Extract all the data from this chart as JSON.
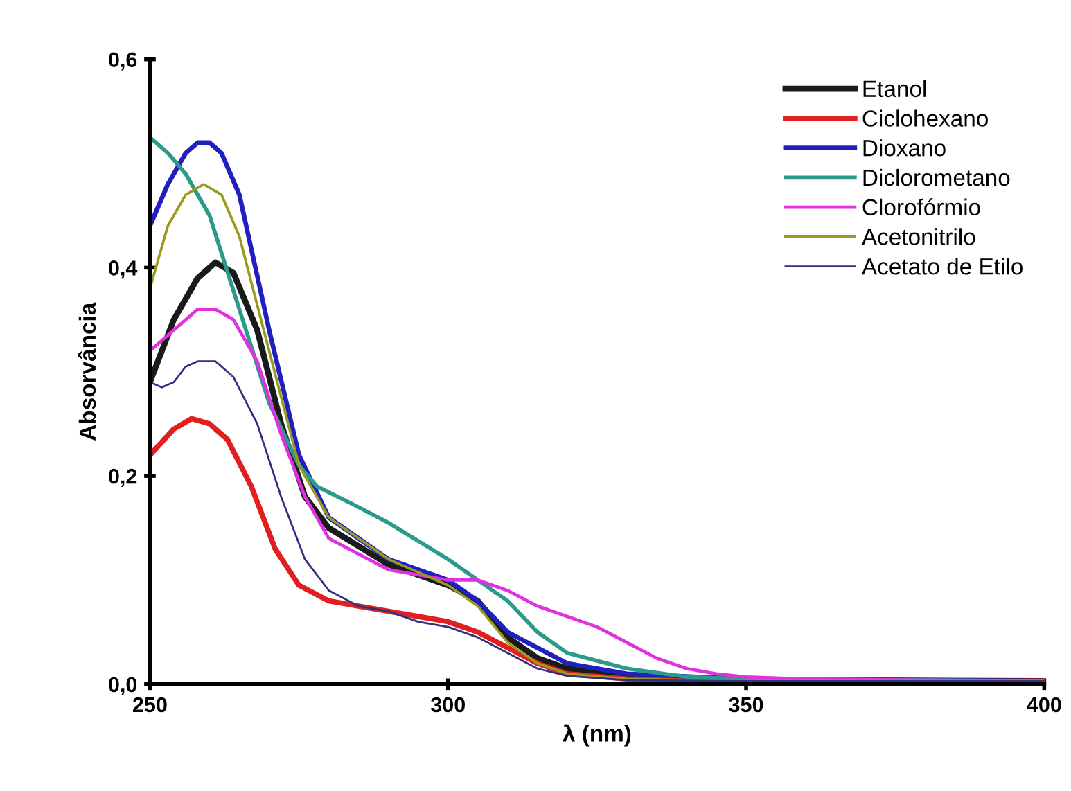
{
  "chart_data": {
    "type": "line",
    "xlabel": "λ (nm)",
    "ylabel": "Absorvância",
    "xlim": [
      250,
      400
    ],
    "ylim": [
      0,
      0.6
    ],
    "xticks": [
      250,
      300,
      350,
      400
    ],
    "yticks": [
      {
        "value": 0,
        "label": "0,0"
      },
      {
        "value": 0.2,
        "label": "0,2"
      },
      {
        "value": 0.4,
        "label": "0,4"
      },
      {
        "value": 0.6,
        "label": "0,6"
      }
    ],
    "grid": false,
    "legend": "top right",
    "marker": "none",
    "line_style": "solid",
    "series": [
      {
        "name": "Etanol",
        "color": "#1a1a1a",
        "x": [
          250,
          254,
          258,
          261,
          264,
          268,
          272,
          276,
          280,
          290,
          300,
          305,
          310,
          315,
          320,
          330,
          350,
          400
        ],
        "values": [
          0.29,
          0.35,
          0.39,
          0.405,
          0.395,
          0.34,
          0.25,
          0.18,
          0.15,
          0.115,
          0.095,
          0.08,
          0.045,
          0.025,
          0.015,
          0.008,
          0.004,
          0.003
        ]
      },
      {
        "name": "Ciclohexano",
        "color": "#e02020",
        "x": [
          250,
          254,
          257,
          260,
          263,
          267,
          271,
          275,
          280,
          290,
          300,
          305,
          310,
          315,
          320,
          330,
          350,
          400
        ],
        "values": [
          0.22,
          0.245,
          0.255,
          0.25,
          0.235,
          0.19,
          0.13,
          0.095,
          0.08,
          0.07,
          0.06,
          0.05,
          0.035,
          0.02,
          0.01,
          0.005,
          0.003,
          0.003
        ]
      },
      {
        "name": "Dioxano",
        "color": "#2020c0",
        "x": [
          250,
          253,
          256,
          258,
          260,
          262,
          265,
          270,
          275,
          280,
          290,
          300,
          305,
          310,
          320,
          330,
          350,
          400
        ],
        "values": [
          0.44,
          0.48,
          0.51,
          0.52,
          0.52,
          0.51,
          0.47,
          0.34,
          0.22,
          0.16,
          0.12,
          0.1,
          0.08,
          0.05,
          0.02,
          0.01,
          0.005,
          0.003
        ]
      },
      {
        "name": "Diclorometano",
        "color": "#2a9a8a",
        "x": [
          250,
          253,
          256,
          260,
          265,
          270,
          275,
          278,
          285,
          290,
          300,
          305,
          310,
          315,
          320,
          330,
          340,
          350,
          400
        ],
        "values": [
          0.525,
          0.51,
          0.49,
          0.45,
          0.36,
          0.27,
          0.21,
          0.19,
          0.17,
          0.155,
          0.12,
          0.1,
          0.08,
          0.05,
          0.03,
          0.015,
          0.007,
          0.005,
          0.003
        ]
      },
      {
        "name": "Clorofórmio",
        "color": "#e030e0",
        "x": [
          250,
          254,
          258,
          261,
          264,
          268,
          272,
          276,
          280,
          290,
          300,
          305,
          310,
          315,
          320,
          325,
          330,
          335,
          340,
          345,
          350,
          360,
          400
        ],
        "values": [
          0.32,
          0.34,
          0.36,
          0.36,
          0.35,
          0.31,
          0.24,
          0.18,
          0.14,
          0.11,
          0.1,
          0.1,
          0.09,
          0.075,
          0.065,
          0.055,
          0.04,
          0.025,
          0.015,
          0.01,
          0.007,
          0.005,
          0.003
        ]
      },
      {
        "name": "Acetonitrilo",
        "color": "#9a9a20",
        "x": [
          250,
          253,
          256,
          259,
          262,
          265,
          270,
          275,
          280,
          290,
          300,
          305,
          310,
          315,
          320,
          330,
          350,
          400
        ],
        "values": [
          0.38,
          0.44,
          0.47,
          0.48,
          0.47,
          0.43,
          0.32,
          0.21,
          0.16,
          0.12,
          0.095,
          0.075,
          0.04,
          0.02,
          0.01,
          0.005,
          0.003,
          0.003
        ]
      },
      {
        "name": "Acetato de Etilo",
        "color": "#303080",
        "x": [
          250,
          252,
          254,
          256,
          258,
          261,
          264,
          268,
          272,
          276,
          280,
          285,
          290,
          295,
          300,
          305,
          310,
          315,
          320,
          330,
          350,
          400
        ],
        "values": [
          0.29,
          0.285,
          0.29,
          0.305,
          0.31,
          0.31,
          0.295,
          0.25,
          0.18,
          0.12,
          0.09,
          0.075,
          0.07,
          0.06,
          0.055,
          0.045,
          0.03,
          0.015,
          0.008,
          0.004,
          0.003,
          0.003
        ]
      }
    ]
  }
}
